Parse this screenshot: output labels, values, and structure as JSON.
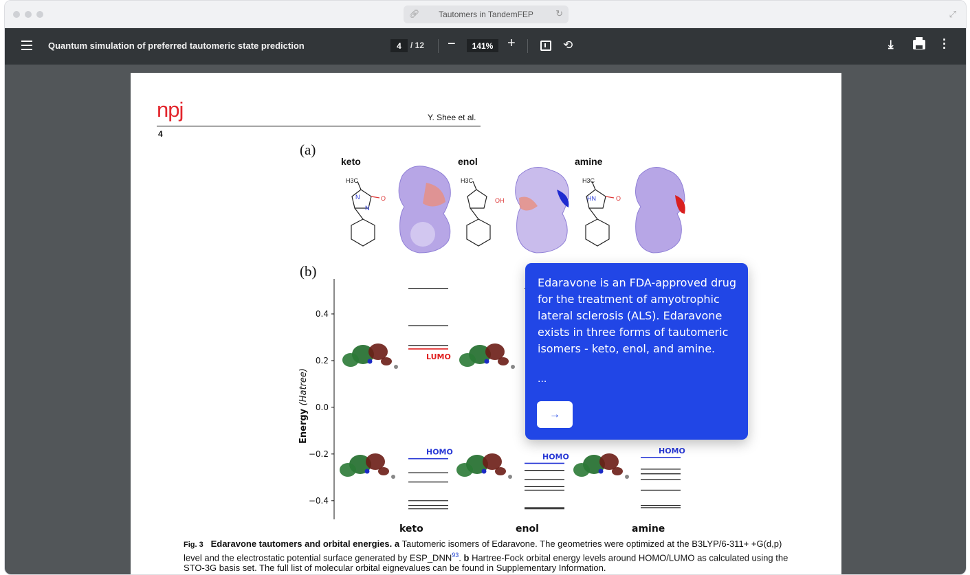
{
  "browser": {
    "tab_title": "Tautomers in TandemFEP"
  },
  "toolbar": {
    "doc_title": "Quantum simulation of preferred tautomeric state prediction",
    "current_page": "4",
    "total_pages": "/ 12",
    "zoom": "141%",
    "zoom_out": "−",
    "zoom_in": "+"
  },
  "page": {
    "journal": "npj",
    "authors": "Y. Shee et al.",
    "page_number": "4",
    "fig_a_label": "(a)",
    "fig_b_label": "(b)",
    "tautomers": [
      "keto",
      "enol",
      "amine"
    ],
    "caption": {
      "fig_tag": "Fig. 3",
      "title": "Edaravone tautomers and orbital energies.",
      "part_a_tag": "a",
      "part_a": "Tautomeric isomers of Edaravone. The geometries were optimized at the B3LYP/6-311+ +G(d,p) level and the electrostatic potential surface generated by ESP_DNN",
      "ref": "93",
      "part_b_tag": "b",
      "part_b": "Hartree-Fock orbital energy levels around HOMO/LUMO as calculated using the STO-3G basis set. The full list of molecular orbital eignevalues can be found in Supplementary Information."
    },
    "molecule_labels": {
      "keto_methyl": "H3C",
      "keto_n1": "N",
      "keto_n2": "N",
      "keto_o": "O",
      "enol_methyl": "H3C",
      "enol_oh": "OH",
      "amine_methyl": "H3C",
      "amine_hn": "HN",
      "amine_o": "O"
    }
  },
  "chart_data": {
    "type": "line",
    "ylabel_main": "Energy",
    "ylabel_unit": "(Hatree)",
    "ylim": [
      -0.48,
      0.55
    ],
    "yticks": [
      "0.4",
      "0.2",
      "0.0",
      "−0.2",
      "−0.4"
    ],
    "ytick_values": [
      0.4,
      0.2,
      0.0,
      -0.2,
      -0.4
    ],
    "categories": [
      "keto",
      "enol",
      "amine"
    ],
    "lumo_label": "LUMO",
    "homo_label": "HOMO",
    "lumo_color": "#e02020",
    "homo_color": "#2a3ad6",
    "series": [
      {
        "category": "keto",
        "occupied": [
          -0.22,
          -0.28,
          -0.32,
          -0.4,
          -0.42,
          -0.435
        ],
        "virtual": [
          0.25,
          0.265,
          0.35,
          0.51
        ],
        "homo": -0.22,
        "lumo": 0.25
      },
      {
        "category": "enol",
        "occupied": [
          -0.24,
          -0.27,
          -0.31,
          -0.34,
          -0.355,
          -0.43,
          -0.435
        ],
        "virtual": [
          0.51
        ],
        "homo": -0.24,
        "lumo": null
      },
      {
        "category": "amine",
        "occupied": [
          -0.215,
          -0.265,
          -0.285,
          -0.31,
          -0.355,
          -0.42,
          -0.43
        ],
        "virtual": [],
        "homo": -0.215,
        "lumo": null
      }
    ]
  },
  "popup": {
    "text": "Edaravone is an FDA-approved drug for the treatment of amyotrophic lateral sclerosis (ALS). Edaravone exists in three forms of tautomeric isomers - keto, enol, and amine.",
    "ellipsis": "...",
    "button": "→"
  },
  "colors": {
    "toolbar": "#323639",
    "viewer_bg": "#525659",
    "popup_bg": "#2146e6",
    "journal_red": "#e3262d"
  }
}
